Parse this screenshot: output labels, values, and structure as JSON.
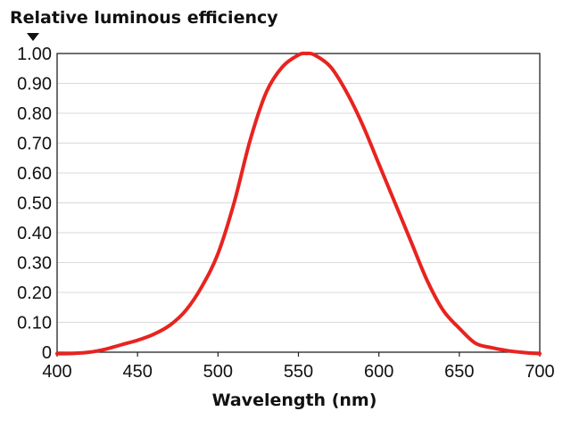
{
  "chart_data": {
    "type": "line",
    "title": "",
    "ylabel": "Relative luminous efficiency",
    "xlabel": "Wavelength (nm)",
    "xlim": [
      400,
      700
    ],
    "ylim": [
      0,
      1.0
    ],
    "xticks": [
      400,
      450,
      500,
      550,
      600,
      650,
      700
    ],
    "xtick_labels": [
      "400",
      "450",
      "500",
      "550",
      "600",
      "650",
      "700"
    ],
    "yticks": [
      1.0,
      0.9,
      0.8,
      0.7,
      0.6,
      0.5,
      0.4,
      0.3,
      0.2,
      0.1,
      0
    ],
    "ytick_labels": [
      "1.00",
      "0.90",
      "0.80",
      "0.70",
      "0.60",
      "0.50",
      "0.40",
      "0.30",
      "0.20",
      "0.10",
      "0"
    ],
    "grid": true,
    "line_color": "#e8231f",
    "series": [
      {
        "x": [
          400,
          410,
          420,
          430,
          440,
          450,
          460,
          470,
          480,
          490,
          500,
          510,
          520,
          530,
          540,
          550,
          555,
          560,
          570,
          580,
          590,
          600,
          610,
          620,
          630,
          640,
          650,
          660,
          670,
          680,
          690,
          700
        ],
        "values": [
          -0.005,
          -0.004,
          0.0,
          0.01,
          0.025,
          0.04,
          0.06,
          0.09,
          0.14,
          0.22,
          0.33,
          0.5,
          0.71,
          0.87,
          0.955,
          0.995,
          1.0,
          0.995,
          0.955,
          0.87,
          0.76,
          0.63,
          0.5,
          0.37,
          0.24,
          0.14,
          0.08,
          0.03,
          0.015,
          0.005,
          -0.001,
          -0.005
        ]
      }
    ]
  }
}
